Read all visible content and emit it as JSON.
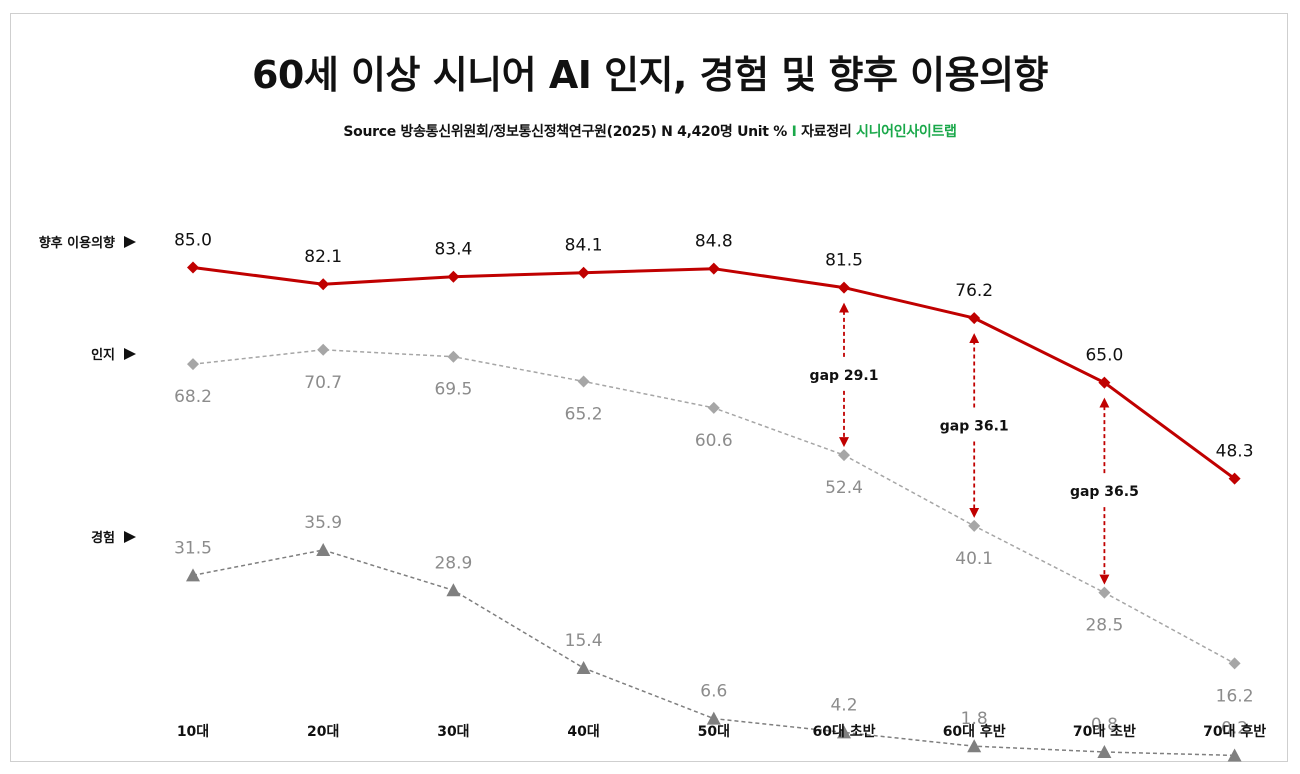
{
  "title": "60세 이상 시니어 AI 인지, 경험 및 향후 이용의향",
  "subtitle": {
    "source_label": "Source",
    "source_text": "방송통신위원회/정보통신정책연구원(2025) N 4,420명 Unit %",
    "separator": "I",
    "compiled_label": "자료정리",
    "compiled_by": "시니어인사이트랩"
  },
  "colors": {
    "intent": "#c00000",
    "awareness": "#a6a6a6",
    "experience": "#7f7f7f",
    "gap_arrow": "#c00000",
    "brand_green": "#1aa84a"
  },
  "chart_data": {
    "type": "line",
    "categories": [
      "10대",
      "20대",
      "30대",
      "40대",
      "50대",
      "60대 초반",
      "60대 후반",
      "70대 초반",
      "70대 후반"
    ],
    "ylim": [
      0,
      100
    ],
    "series": [
      {
        "key": "intent",
        "name": "향후 이용의향",
        "marker": "diamond",
        "style": "solid",
        "values": [
          85.0,
          82.1,
          83.4,
          84.1,
          84.8,
          81.5,
          76.2,
          65.0,
          48.3
        ]
      },
      {
        "key": "awareness",
        "name": "인지",
        "marker": "diamond",
        "style": "dashed",
        "values": [
          68.2,
          70.7,
          69.5,
          65.2,
          60.6,
          52.4,
          40.1,
          28.5,
          16.2
        ]
      },
      {
        "key": "experience",
        "name": "경험",
        "marker": "triangle",
        "style": "dashed",
        "values": [
          31.5,
          35.9,
          28.9,
          15.4,
          6.6,
          4.2,
          1.8,
          0.8,
          0.2
        ]
      }
    ],
    "annotations": [
      {
        "category": "60대 초반",
        "label": "gap 29.1",
        "from_series": "intent",
        "to_series": "awareness"
      },
      {
        "category": "60대 후반",
        "label": "gap 36.1",
        "from_series": "intent",
        "to_series": "awareness"
      },
      {
        "category": "70대 초반",
        "label": "gap 36.5",
        "from_series": "intent",
        "to_series": "awareness"
      }
    ],
    "value_format": "0.0"
  }
}
